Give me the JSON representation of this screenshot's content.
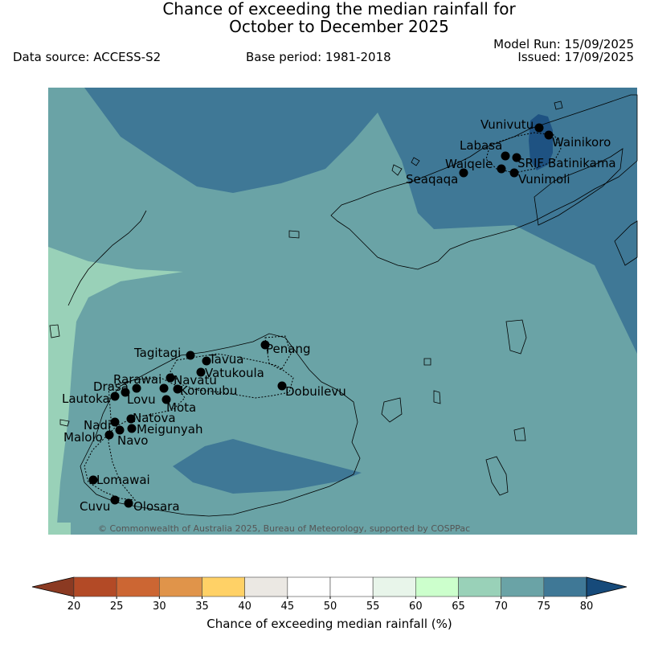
{
  "header": {
    "title_line1": "Chance of exceeding the median rainfall for",
    "title_line2": "October to December 2025",
    "data_source": "Data source: ACCESS-S2",
    "base_period": "Base period: 1981-2018",
    "model_run": "Model Run: 15/09/2025",
    "issued": "Issued: 17/09/2025"
  },
  "map": {
    "copyright": "© Commonwealth of Australia 2025, Bureau of Meteorology, supported by COSPPac",
    "stations": [
      "Vunivutu",
      "Wainikoro",
      "Labasa",
      "Waiqele",
      "SRIF",
      "Batinikama",
      "Seaqaqa",
      "Vunimoli",
      "Tagitagi",
      "Tavua",
      "Penang",
      "Vatukoula",
      "Rarawai",
      "Navatu",
      "Drasa",
      "Koronubu",
      "Lautoka",
      "Lovu",
      "Dobuilevu",
      "Mota",
      "Natova",
      "Nadi",
      "Meigunyah",
      "Malolo",
      "Navo",
      "Lomawai",
      "Cuvu",
      "Olosara"
    ]
  },
  "colorbar": {
    "title": "Chance of exceeding median rainfall (%)",
    "ticks": [
      "20",
      "25",
      "30",
      "35",
      "40",
      "45",
      "50",
      "55",
      "60",
      "65",
      "70",
      "75",
      "80"
    ],
    "colors": [
      "#b34a26",
      "#cc6633",
      "#e0944a",
      "#ffd166",
      "#ebe8e3",
      "#ffffff",
      "#ffffff",
      "#e8f5ea",
      "#ccffcc",
      "#99d1b8",
      "#6aa3a6",
      "#3f7896"
    ],
    "under_color": "#8b3a22",
    "over_color": "#164a7a"
  }
}
